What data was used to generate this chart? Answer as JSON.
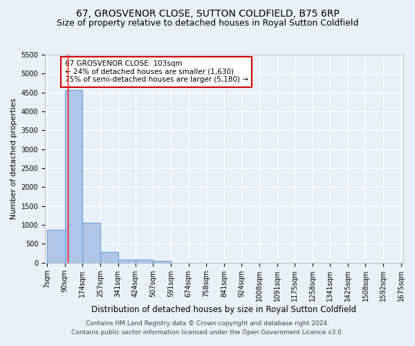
{
  "title": "67, GROSVENOR CLOSE, SUTTON COLDFIELD, B75 6RP",
  "subtitle": "Size of property relative to detached houses in Royal Sutton Coldfield",
  "xlabel": "Distribution of detached houses by size in Royal Sutton Coldfield",
  "ylabel": "Number of detached properties",
  "footer_line1": "Contains HM Land Registry data © Crown copyright and database right 2024.",
  "footer_line2": "Contains public sector information licensed under the Open Government Licence v3.0.",
  "annotation_line1": "67 GROSVENOR CLOSE: 103sqm",
  "annotation_line2": "← 24% of detached houses are smaller (1,630)",
  "annotation_line3": "75% of semi-detached houses are larger (5,180) →",
  "bar_edges": [
    7,
    90,
    174,
    257,
    341,
    424,
    507,
    591,
    674,
    758,
    841,
    924,
    1008,
    1091,
    1175,
    1258,
    1341,
    1425,
    1508,
    1592,
    1675
  ],
  "bar_heights": [
    880,
    4570,
    1060,
    290,
    90,
    80,
    50,
    0,
    0,
    0,
    0,
    0,
    0,
    0,
    0,
    0,
    0,
    0,
    0,
    0
  ],
  "bar_color": "#aec6e8",
  "bar_edge_color": "#5b9bd5",
  "property_line_x": 103,
  "ylim": [
    0,
    5500
  ],
  "yticks": [
    0,
    500,
    1000,
    1500,
    2000,
    2500,
    3000,
    3500,
    4000,
    4500,
    5000,
    5500
  ],
  "bg_color": "#eaf0f8",
  "plot_bg_color": "#eaf0f8",
  "grid_color": "#ffffff",
  "annotation_box_color": "#cc0000",
  "title_fontsize": 10,
  "subtitle_fontsize": 9,
  "xlabel_fontsize": 8.5,
  "ylabel_fontsize": 8,
  "tick_fontsize": 7,
  "annotation_fontsize": 7.5,
  "footer_fontsize": 6.5
}
